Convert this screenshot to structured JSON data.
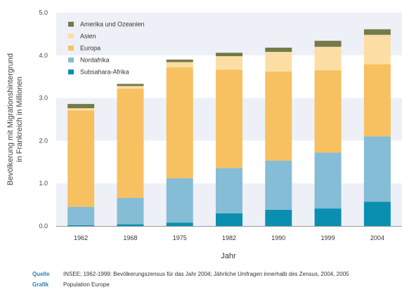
{
  "chart_data": {
    "type": "bar",
    "stacked": true,
    "categories": [
      "1962",
      "1968",
      "1975",
      "1982",
      "1990",
      "1999",
      "2004"
    ],
    "series": [
      {
        "name": "Subsahara-Afrika",
        "color": "#0a8fb0",
        "values": [
          0.02,
          0.04,
          0.08,
          0.3,
          0.38,
          0.41,
          0.57
        ]
      },
      {
        "name": "Nordafrika",
        "color": "#85bcd6",
        "values": [
          0.43,
          0.62,
          1.04,
          1.06,
          1.15,
          1.31,
          1.53
        ]
      },
      {
        "name": "Europa",
        "color": "#f7c061",
        "values": [
          2.26,
          2.56,
          2.6,
          2.3,
          2.09,
          1.93,
          1.69
        ]
      },
      {
        "name": "Asien",
        "color": "#fcdea4",
        "values": [
          0.05,
          0.06,
          0.12,
          0.32,
          0.46,
          0.55,
          0.69
        ]
      },
      {
        "name": "Amerika und Ozeanien",
        "color": "#747a4a",
        "values": [
          0.1,
          0.05,
          0.06,
          0.08,
          0.1,
          0.14,
          0.13
        ]
      }
    ],
    "legend_order": [
      "Amerika und Ozeanien",
      "Asien",
      "Europa",
      "Nordafrika",
      "Subsahara-Afrika"
    ],
    "ylabel_lines": [
      "Bevölkerung mit Migrationshintergrund",
      "in Frankreich in Millionen"
    ],
    "xlabel": "Jahr",
    "ylim": [
      0,
      5
    ],
    "yticks": [
      "0.0",
      "1.0",
      "2.0",
      "3.0",
      "4.0",
      "5.0"
    ],
    "ytick_values": [
      0,
      1,
      2,
      3,
      4,
      5
    ],
    "grid": "alternating-bands",
    "legend_position": "top-left"
  },
  "footer": {
    "source_label": "Quelle",
    "source_text": "INSEE; 1962-1999: Bevölkerungszensus für das Jahr 2004; Jährliche Umfragen innerhalb des Zensus, 2004, 2005",
    "graphic_label": "Grafik",
    "graphic_text": "Population Europe"
  }
}
